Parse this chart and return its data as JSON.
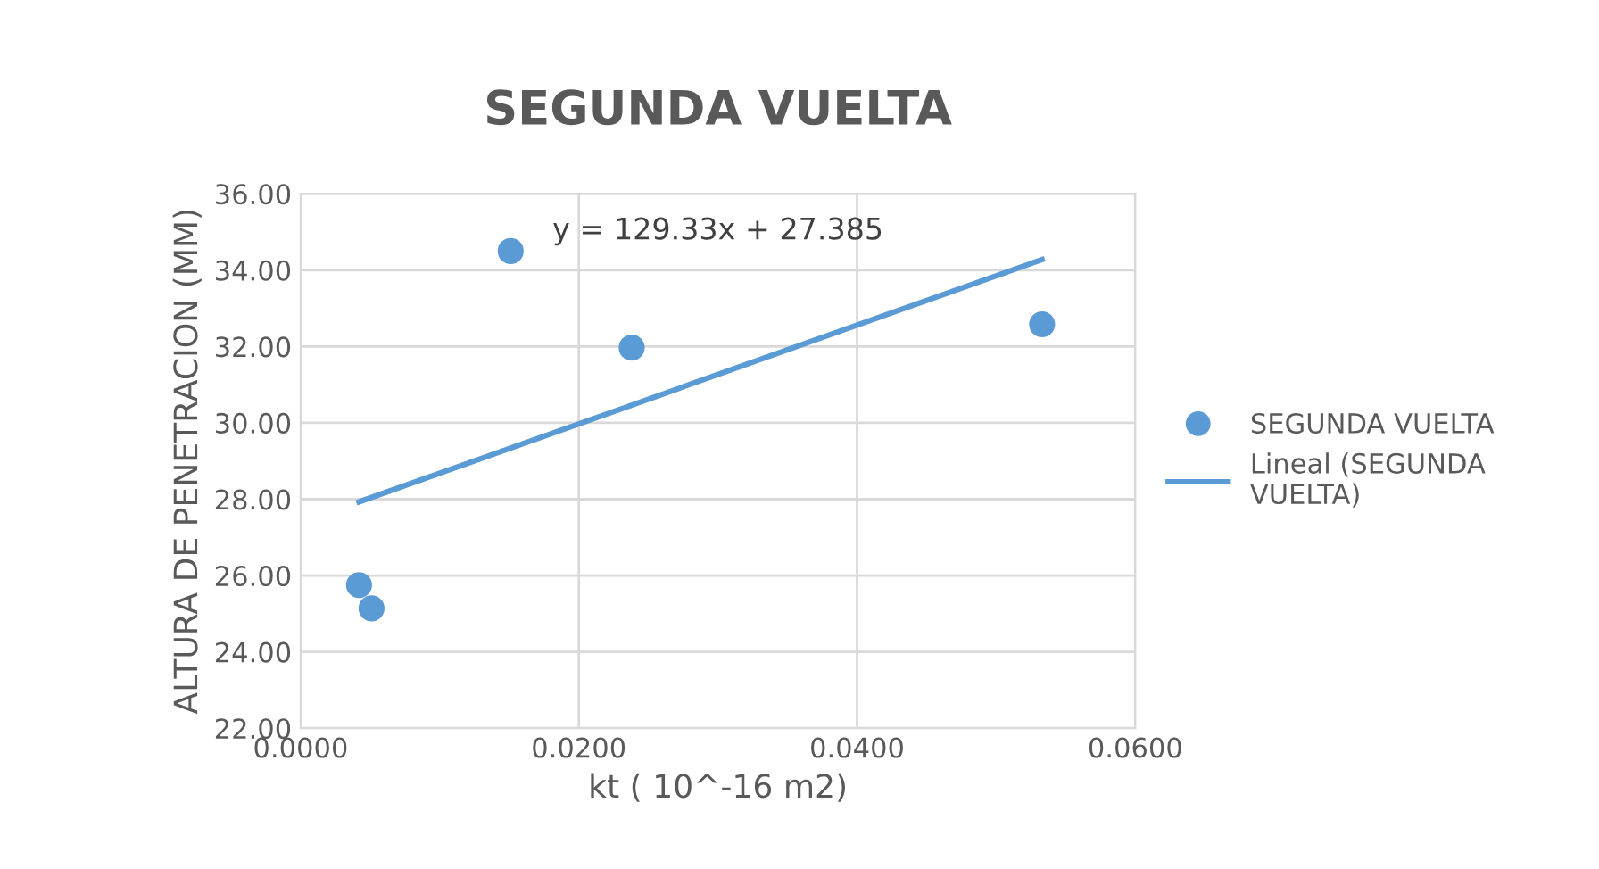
{
  "chart_data": {
    "type": "scatter",
    "title": "SEGUNDA VUELTA",
    "xlabel": "kt ( 10^-16 m2)",
    "ylabel": "ALTURA DE PENETRACION (MM)",
    "series": [
      {
        "name": "SEGUNDA VUELTA",
        "marker": "circle",
        "color": "#5b9bd5",
        "x": [
          0.0042,
          0.0051,
          0.0151,
          0.0238,
          0.0533
        ],
        "values": [
          25.75,
          25.14,
          34.5,
          31.97,
          32.58
        ]
      },
      {
        "name": "Lineal (SEGUNDA VUELTA)",
        "type": "line",
        "marker": "none",
        "color": "#5b9bd5",
        "x": [
          0.0042,
          0.0533
        ],
        "values": [
          27.93,
          34.28
        ]
      }
    ],
    "annotations": [
      "y = 129.33x + 27.385"
    ],
    "xlim": [
      0,
      0.06
    ],
    "ylim": [
      22,
      36
    ],
    "xticks": [
      {
        "value": 0,
        "label": "0.0000"
      },
      {
        "value": 0.02,
        "label": "0.0200"
      },
      {
        "value": 0.04,
        "label": "0.0400"
      },
      {
        "value": 0.06,
        "label": "0.0600"
      }
    ],
    "yticks": [
      {
        "value": 22,
        "label": "22.00"
      },
      {
        "value": 24,
        "label": "24.00"
      },
      {
        "value": 26,
        "label": "26.00"
      },
      {
        "value": 28,
        "label": "28.00"
      },
      {
        "value": 30,
        "label": "30.00"
      },
      {
        "value": 32,
        "label": "32.00"
      },
      {
        "value": 34,
        "label": "34.00"
      },
      {
        "value": 36,
        "label": "36.00"
      }
    ],
    "grid": true,
    "legend": "right"
  }
}
